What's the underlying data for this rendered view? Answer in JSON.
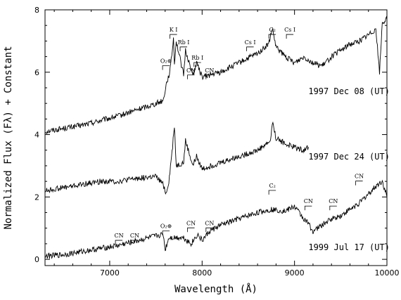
{
  "chart_data": {
    "type": "line",
    "title": "",
    "xlabel": "Wavelength (Å)",
    "ylabel": "Normalized Flux (Fλ) + Constant",
    "xlim": [
      6300,
      10000
    ],
    "ylim": [
      -0.2,
      8
    ],
    "x_ticks": [
      7000,
      8000,
      9000,
      10000
    ],
    "y_ticks": [
      0,
      2,
      4,
      6,
      8
    ],
    "grid": false,
    "series": [
      {
        "name": "1997 Dec 08 (UT)",
        "x": [
          6300,
          6500,
          6700,
          6900,
          7100,
          7300,
          7500,
          7580,
          7610,
          7640,
          7660,
          7690,
          7700,
          7720,
          7800,
          7820,
          7900,
          7940,
          8000,
          8200,
          8400,
          8530,
          8600,
          8720,
          8760,
          8800,
          8900,
          9000,
          9100,
          9200,
          9300,
          9400,
          9500,
          9600,
          9700,
          9800,
          9880,
          9920,
          9950,
          10000
        ],
        "y": [
          4.1,
          4.2,
          4.3,
          4.45,
          4.6,
          4.8,
          5.0,
          5.1,
          5.6,
          5.9,
          6.2,
          7.1,
          6.3,
          7.0,
          5.9,
          6.7,
          5.9,
          6.3,
          5.85,
          6.0,
          6.3,
          6.5,
          6.6,
          6.9,
          7.4,
          6.8,
          6.5,
          6.3,
          6.5,
          6.3,
          6.2,
          6.5,
          6.7,
          6.9,
          7.0,
          7.2,
          7.4,
          6.0,
          7.6,
          7.7
        ]
      },
      {
        "name": "1997 Dec 24 (UT)",
        "x": [
          6300,
          6500,
          6700,
          6900,
          7100,
          7300,
          7500,
          7580,
          7610,
          7640,
          7680,
          7700,
          7720,
          7800,
          7820,
          7900,
          7940,
          8000,
          8200,
          8400,
          8600,
          8740,
          8760,
          8800,
          8900,
          9000,
          9100,
          9150
        ],
        "y": [
          2.2,
          2.3,
          2.4,
          2.5,
          2.5,
          2.6,
          2.65,
          2.4,
          2.1,
          2.5,
          3.6,
          4.3,
          3.0,
          3.1,
          3.8,
          3.0,
          3.3,
          2.9,
          3.1,
          3.3,
          3.5,
          3.8,
          4.4,
          3.9,
          3.7,
          3.6,
          3.5,
          3.6
        ]
      },
      {
        "name": "1999 Jul 17 (UT)",
        "x": [
          6300,
          6500,
          6700,
          6900,
          7100,
          7300,
          7500,
          7580,
          7600,
          7640,
          7700,
          7800,
          7880,
          7950,
          8000,
          8080,
          8200,
          8400,
          8600,
          8750,
          8900,
          9000,
          9100,
          9150,
          9200,
          9300,
          9400,
          9500,
          9600,
          9700,
          9800,
          9900,
          9950,
          10000
        ],
        "y": [
          0.1,
          0.15,
          0.25,
          0.35,
          0.45,
          0.6,
          0.75,
          0.8,
          0.3,
          0.7,
          0.7,
          0.7,
          0.5,
          0.8,
          0.6,
          0.9,
          1.1,
          1.3,
          1.5,
          1.6,
          1.55,
          1.7,
          1.3,
          1.15,
          0.9,
          1.1,
          1.3,
          1.4,
          1.6,
          1.8,
          2.1,
          2.4,
          2.5,
          2.0
        ]
      }
    ],
    "epoch_labels": [
      {
        "text": "1997 Dec 08 (UT)",
        "x": 9150,
        "y": 5.3
      },
      {
        "text": "1997 Dec 24 (UT)",
        "x": 9150,
        "y": 3.2
      },
      {
        "text": "1999 Jul 17 (UT)",
        "x": 9150,
        "y": 0.3
      }
    ],
    "annotations": [
      {
        "text": "K I",
        "x": 7690,
        "y": 7.3
      },
      {
        "text": "Rb I",
        "x": 7800,
        "y": 6.9
      },
      {
        "text": "Rb I",
        "x": 7950,
        "y": 6.4
      },
      {
        "text": "O₂⊕",
        "x": 7610,
        "y": 6.3
      },
      {
        "text": "CN",
        "x": 7880,
        "y": 6.0
      },
      {
        "text": "CN",
        "x": 8080,
        "y": 6.0
      },
      {
        "text": "Cs I",
        "x": 8520,
        "y": 6.9
      },
      {
        "text": "C₂",
        "x": 8760,
        "y": 7.3
      },
      {
        "text": "Cs I",
        "x": 8950,
        "y": 7.3
      },
      {
        "text": "C₂",
        "x": 8760,
        "y": 2.3
      },
      {
        "text": "CN",
        "x": 9700,
        "y": 2.6
      },
      {
        "text": "CN",
        "x": 9150,
        "y": 1.8
      },
      {
        "text": "CN",
        "x": 9420,
        "y": 1.8
      },
      {
        "text": "O₂⊕",
        "x": 7610,
        "y": 1.0
      },
      {
        "text": "CN",
        "x": 7880,
        "y": 1.1
      },
      {
        "text": "CN",
        "x": 8080,
        "y": 1.1
      },
      {
        "text": "CN",
        "x": 7100,
        "y": 0.7
      },
      {
        "text": "CN",
        "x": 7270,
        "y": 0.7
      }
    ]
  }
}
